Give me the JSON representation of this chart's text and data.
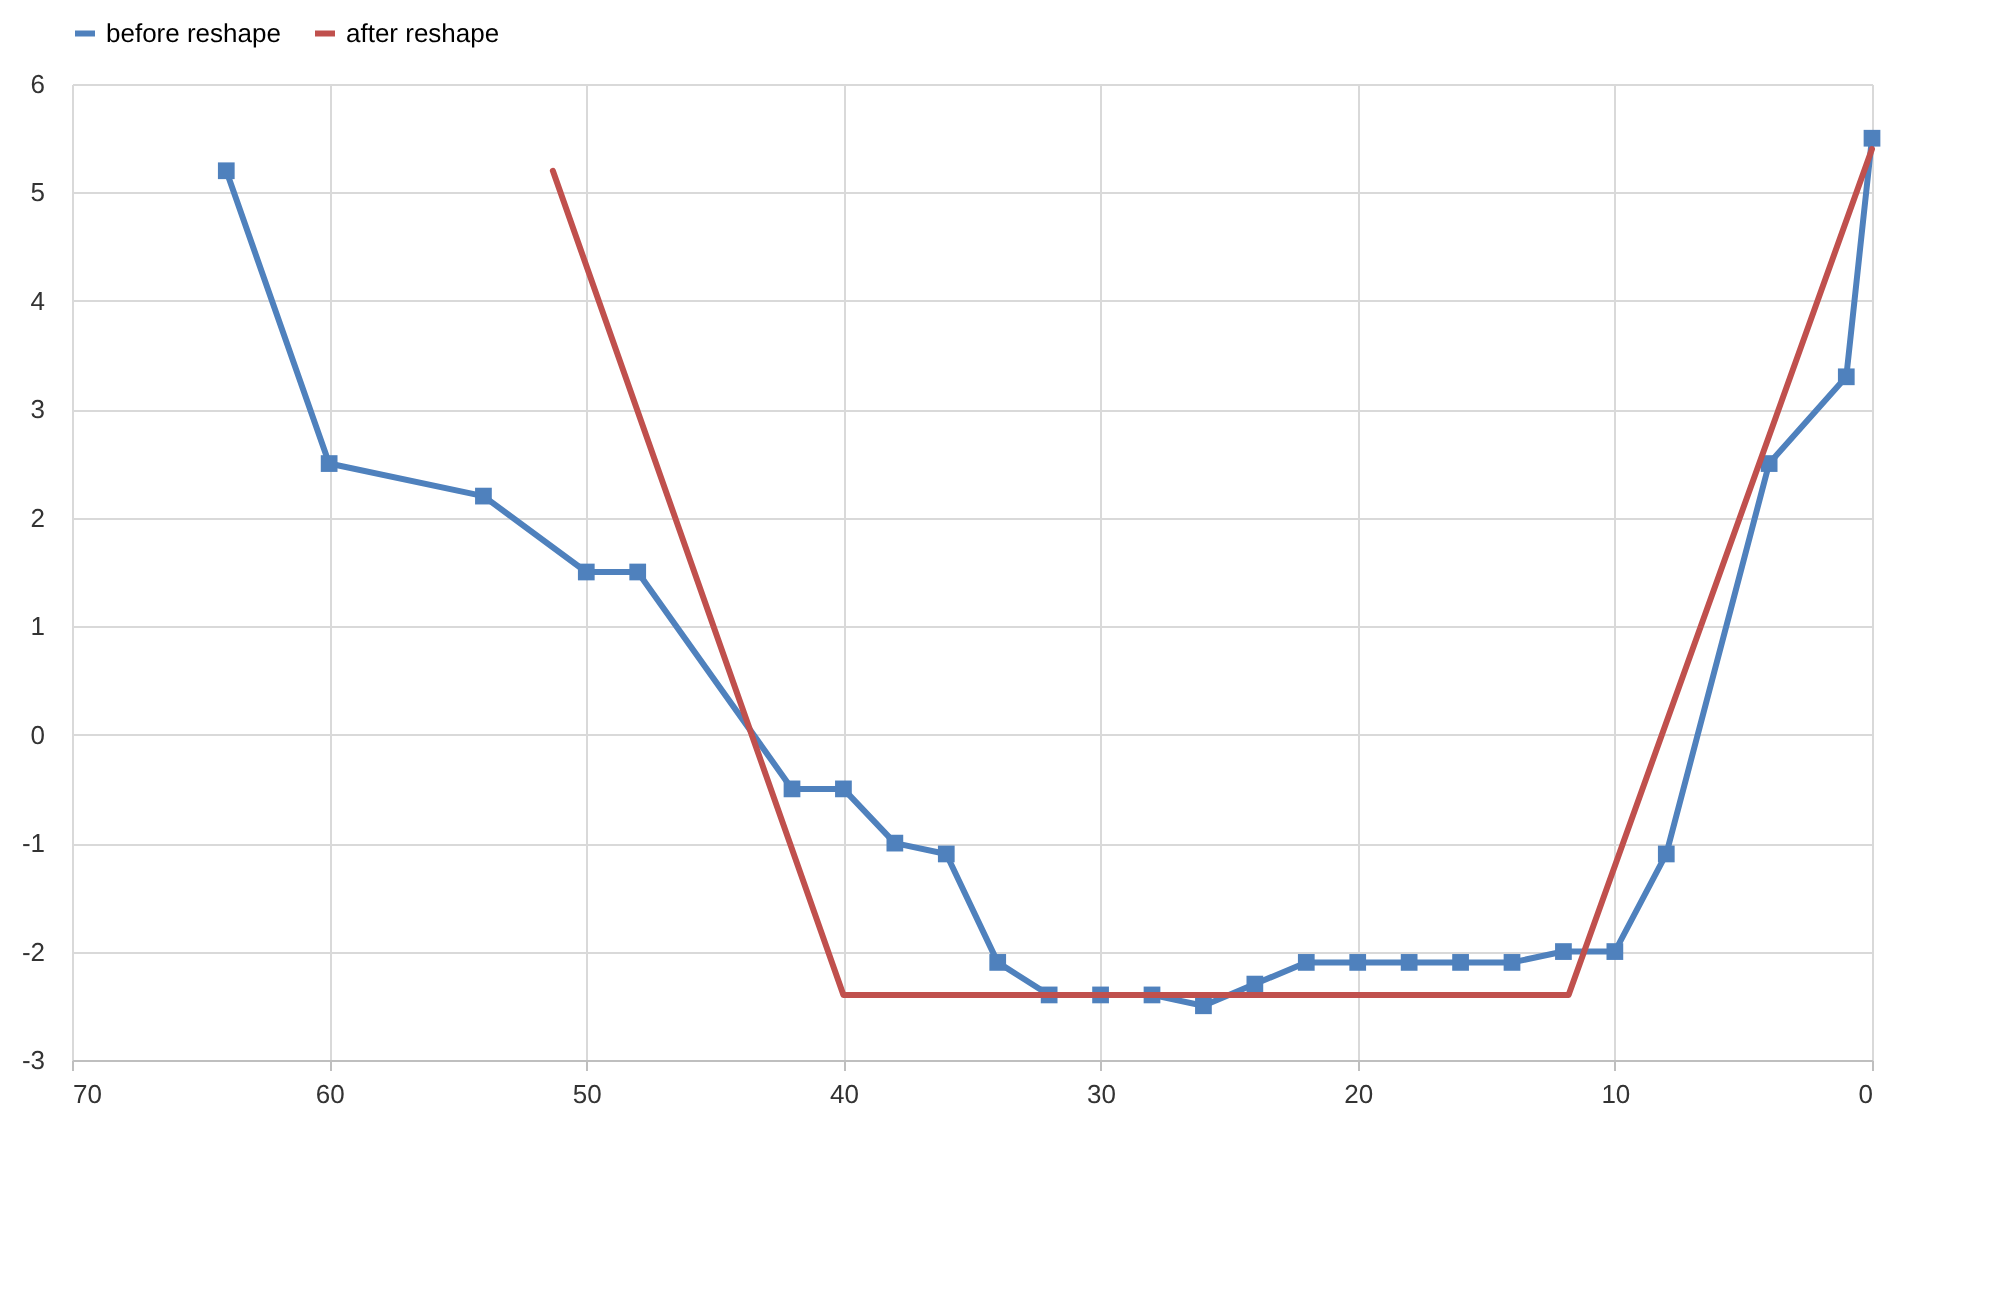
{
  "chart_data": {
    "type": "line",
    "legend": "top",
    "grid": true,
    "xlim": [
      70,
      0
    ],
    "xticks": [
      70,
      60,
      50,
      40,
      30,
      20,
      10,
      0
    ],
    "ylim": [
      -3,
      6
    ],
    "yticks": [
      -3,
      -2,
      -1,
      0,
      1,
      2,
      3,
      4,
      5,
      6
    ],
    "series": [
      {
        "name": "before reshape",
        "color": "#4f81bd",
        "marker": "square",
        "x": [
          64,
          60,
          54,
          50,
          48,
          42,
          40,
          38,
          36,
          34,
          32,
          30,
          28,
          26,
          24,
          22,
          20,
          18,
          16,
          14,
          12,
          10,
          8,
          4,
          1,
          0
        ],
        "values": [
          5.2,
          2.5,
          2.2,
          1.5,
          1.5,
          -0.5,
          -0.5,
          -1,
          -1.1,
          -2.1,
          -2.4,
          -2.4,
          -2.4,
          -2.5,
          -2.3,
          -2.1,
          -2.1,
          -2.1,
          -2.1,
          -2.1,
          -2,
          -2,
          -1.1,
          2.5,
          3.3,
          5.5
        ]
      },
      {
        "name": "after reshape",
        "color": "#c0504d",
        "marker": "none",
        "x": [
          51.3,
          40,
          11.8,
          0
        ],
        "values": [
          5.2,
          -2.4,
          -2.4,
          5.4
        ]
      }
    ]
  }
}
